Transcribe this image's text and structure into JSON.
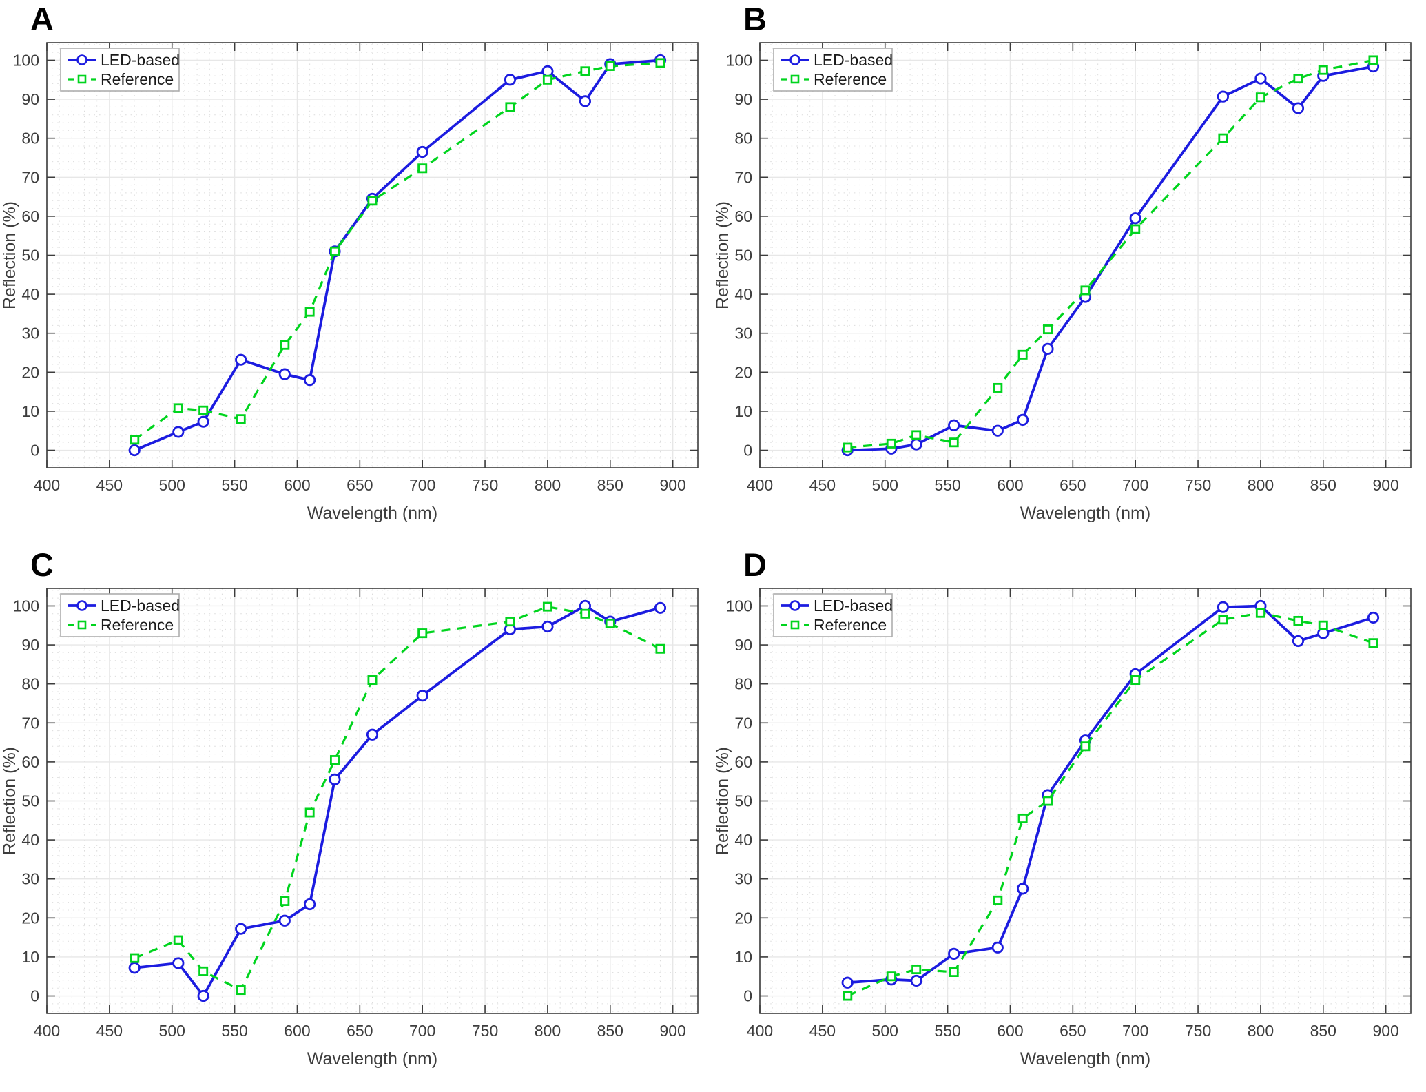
{
  "figure": {
    "xlabel": "Wavelength (nm)",
    "ylabel": "Reflection (%)",
    "legend_labels": [
      "LED-based",
      "Reference"
    ],
    "colors": {
      "led": "#1c1ce0",
      "reference": "#00d41e",
      "grid_major": "#e7e7e7",
      "grid_minor": "#dcdcdc",
      "axis": "#3c3c3c",
      "text": "#3d3d3d",
      "legend_border": "#adadad"
    }
  },
  "chart_data": [
    {
      "type": "line",
      "title": "A",
      "xlabel": "Wavelength (nm)",
      "ylabel": "Reflection (%)",
      "x": [
        470,
        505,
        525,
        555,
        590,
        610,
        630,
        660,
        700,
        770,
        800,
        830,
        850,
        890
      ],
      "series": [
        {
          "name": "LED-based",
          "color": "#1c1ce0",
          "line": "solid",
          "marker": "circle",
          "values": [
            0,
            4.7,
            7.3,
            23.2,
            19.5,
            18.0,
            51.0,
            64.5,
            76.5,
            95.0,
            97.2,
            89.5,
            99.0,
            100.0
          ]
        },
        {
          "name": "Reference",
          "color": "#00d41e",
          "line": "dashed",
          "marker": "square",
          "values": [
            2.7,
            10.8,
            10.2,
            8.0,
            27.0,
            35.5,
            51.0,
            64.0,
            72.3,
            88.0,
            95.0,
            97.2,
            98.5,
            99.3
          ]
        }
      ],
      "x_ticks": [
        400,
        450,
        500,
        550,
        600,
        650,
        700,
        750,
        800,
        850,
        900
      ],
      "y_ticks": [
        0,
        10,
        20,
        30,
        40,
        50,
        60,
        70,
        80,
        90,
        100
      ],
      "xlim": [
        400,
        920
      ],
      "ylim": [
        -4.5,
        104.5
      ],
      "grid": "on",
      "legend_position": "northwest"
    },
    {
      "type": "line",
      "title": "B",
      "xlabel": "Wavelength (nm)",
      "ylabel": "Reflection (%)",
      "x": [
        470,
        505,
        525,
        555,
        590,
        610,
        630,
        660,
        700,
        770,
        800,
        830,
        850,
        890
      ],
      "series": [
        {
          "name": "LED-based",
          "color": "#1c1ce0",
          "line": "solid",
          "marker": "circle",
          "values": [
            0.0,
            0.4,
            1.5,
            6.4,
            5.0,
            7.8,
            26.0,
            39.3,
            59.5,
            90.7,
            95.3,
            87.7,
            96.0,
            98.4
          ]
        },
        {
          "name": "Reference",
          "color": "#00d41e",
          "line": "dashed",
          "marker": "square",
          "values": [
            0.7,
            1.7,
            3.9,
            2.0,
            16.0,
            24.5,
            31.0,
            41.0,
            56.7,
            80.0,
            90.5,
            95.3,
            97.5,
            100.0
          ]
        }
      ],
      "x_ticks": [
        400,
        450,
        500,
        550,
        600,
        650,
        700,
        750,
        800,
        850,
        900
      ],
      "y_ticks": [
        0,
        10,
        20,
        30,
        40,
        50,
        60,
        70,
        80,
        90,
        100
      ],
      "xlim": [
        400,
        920
      ],
      "ylim": [
        -4.5,
        104.5
      ],
      "grid": "on",
      "legend_position": "northwest"
    },
    {
      "type": "line",
      "title": "C",
      "xlabel": "Wavelength (nm)",
      "ylabel": "Reflection (%)",
      "x": [
        470,
        505,
        525,
        555,
        590,
        610,
        630,
        660,
        700,
        770,
        800,
        830,
        850,
        890
      ],
      "series": [
        {
          "name": "LED-based",
          "color": "#1c1ce0",
          "line": "solid",
          "marker": "circle",
          "values": [
            7.2,
            8.4,
            0.0,
            17.2,
            19.3,
            23.5,
            55.5,
            67.0,
            77.0,
            94.0,
            94.7,
            100.0,
            96.0,
            99.5
          ]
        },
        {
          "name": "Reference",
          "color": "#00d41e",
          "line": "dashed",
          "marker": "square",
          "values": [
            9.7,
            14.3,
            6.3,
            1.5,
            24.3,
            47.0,
            60.5,
            81.0,
            93.0,
            96.0,
            99.8,
            98.0,
            95.5,
            89.0
          ]
        }
      ],
      "x_ticks": [
        400,
        450,
        500,
        550,
        600,
        650,
        700,
        750,
        800,
        850,
        900
      ],
      "y_ticks": [
        0,
        10,
        20,
        30,
        40,
        50,
        60,
        70,
        80,
        90,
        100
      ],
      "xlim": [
        400,
        920
      ],
      "ylim": [
        -4.5,
        104.5
      ],
      "grid": "on",
      "legend_position": "northwest"
    },
    {
      "type": "line",
      "title": "D",
      "xlabel": "Wavelength (nm)",
      "ylabel": "Reflection (%)",
      "x": [
        470,
        505,
        525,
        555,
        590,
        610,
        630,
        660,
        700,
        770,
        800,
        830,
        850,
        890
      ],
      "series": [
        {
          "name": "LED-based",
          "color": "#1c1ce0",
          "line": "solid",
          "marker": "circle",
          "values": [
            3.4,
            4.2,
            3.9,
            10.8,
            12.4,
            27.5,
            51.5,
            65.5,
            82.5,
            99.7,
            100.0,
            91.0,
            93.0,
            97.0
          ]
        },
        {
          "name": "Reference",
          "color": "#00d41e",
          "line": "dashed",
          "marker": "square",
          "values": [
            0.0,
            5.0,
            6.8,
            6.1,
            24.5,
            45.5,
            50.0,
            64.0,
            81.0,
            96.5,
            98.2,
            96.2,
            95.0,
            90.5
          ]
        }
      ],
      "x_ticks": [
        400,
        450,
        500,
        550,
        600,
        650,
        700,
        750,
        800,
        850,
        900
      ],
      "y_ticks": [
        0,
        10,
        20,
        30,
        40,
        50,
        60,
        70,
        80,
        90,
        100
      ],
      "xlim": [
        400,
        920
      ],
      "ylim": [
        -4.5,
        104.5
      ],
      "grid": "on",
      "legend_position": "northwest"
    }
  ]
}
